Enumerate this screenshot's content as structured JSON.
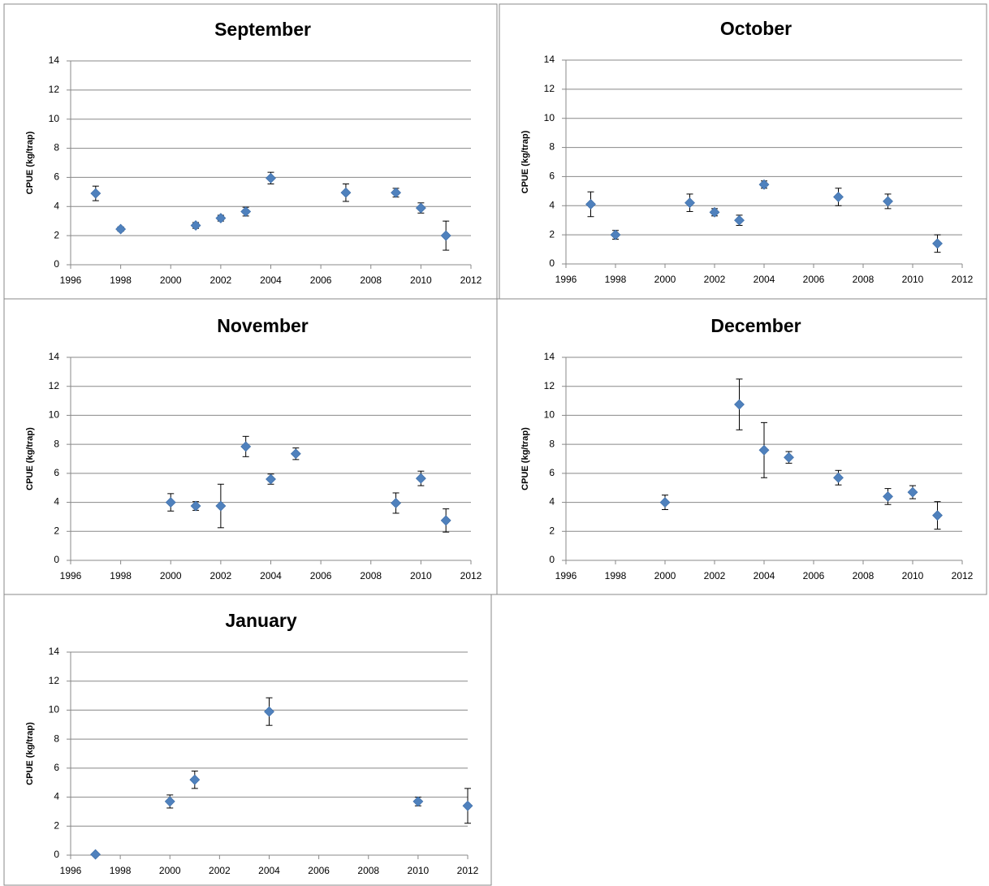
{
  "chart_data": [
    {
      "type": "scatter",
      "title": "September",
      "ylabel": "CPUE (kg/trap)",
      "color": "#4f81bd",
      "grid": true,
      "x": [
        1997,
        1998,
        2001,
        2002,
        2003,
        2004,
        2007,
        2009,
        2010,
        2011
      ],
      "values": [
        4.9,
        2.45,
        2.7,
        3.2,
        3.65,
        5.95,
        4.95,
        4.95,
        3.9,
        2.0
      ],
      "errors": [
        0.5,
        0.15,
        0.2,
        0.2,
        0.3,
        0.4,
        0.6,
        0.3,
        0.35,
        1.0
      ],
      "xlim": [
        1996,
        2012
      ],
      "xticks": [
        1996,
        1998,
        2000,
        2002,
        2004,
        2006,
        2008,
        2010,
        2012
      ],
      "ylim": [
        0,
        14
      ],
      "yticks": [
        0,
        2,
        4,
        6,
        8,
        10,
        12,
        14
      ]
    },
    {
      "type": "scatter",
      "title": "October",
      "ylabel": "CPUE (kg/trap)",
      "color": "#4f81bd",
      "grid": true,
      "x": [
        1997,
        1998,
        2001,
        2002,
        2003,
        2004,
        2007,
        2009,
        2011
      ],
      "values": [
        4.1,
        2.0,
        4.2,
        3.55,
        3.0,
        5.45,
        4.6,
        4.3,
        1.4
      ],
      "errors": [
        0.85,
        0.3,
        0.6,
        0.25,
        0.35,
        0.25,
        0.6,
        0.5,
        0.6
      ],
      "xlim": [
        1996,
        2012
      ],
      "xticks": [
        1996,
        1998,
        2000,
        2002,
        2004,
        2006,
        2008,
        2010,
        2012
      ],
      "ylim": [
        0,
        14
      ],
      "yticks": [
        0,
        2,
        4,
        6,
        8,
        10,
        12,
        14
      ]
    },
    {
      "type": "scatter",
      "title": "November",
      "ylabel": "CPUE (kg/trap)",
      "color": "#4f81bd",
      "grid": true,
      "x": [
        2000,
        2001,
        2002,
        2003,
        2004,
        2005,
        2009,
        2010,
        2011
      ],
      "values": [
        4.0,
        3.75,
        3.75,
        7.85,
        5.6,
        7.35,
        3.95,
        5.65,
        2.75
      ],
      "errors": [
        0.6,
        0.3,
        1.5,
        0.7,
        0.35,
        0.4,
        0.7,
        0.5,
        0.8
      ],
      "xlim": [
        1996,
        2012
      ],
      "xticks": [
        1996,
        1998,
        2000,
        2002,
        2004,
        2006,
        2008,
        2010,
        2012
      ],
      "ylim": [
        0,
        14
      ],
      "yticks": [
        0,
        2,
        4,
        6,
        8,
        10,
        12,
        14
      ]
    },
    {
      "type": "scatter",
      "title": "December",
      "ylabel": "CPUE (kg/trap)",
      "color": "#4f81bd",
      "grid": true,
      "x": [
        2000,
        2003,
        2004,
        2005,
        2007,
        2009,
        2010,
        2011
      ],
      "values": [
        4.0,
        10.75,
        7.6,
        7.1,
        5.7,
        4.4,
        4.7,
        3.1
      ],
      "errors": [
        0.5,
        1.75,
        1.9,
        0.4,
        0.5,
        0.55,
        0.45,
        0.95
      ],
      "xlim": [
        1996,
        2012
      ],
      "xticks": [
        1996,
        1998,
        2000,
        2002,
        2004,
        2006,
        2008,
        2010,
        2012
      ],
      "ylim": [
        0,
        14
      ],
      "yticks": [
        0,
        2,
        4,
        6,
        8,
        10,
        12,
        14
      ]
    },
    {
      "type": "scatter",
      "title": "January",
      "ylabel": "CPUE (kg/trap)",
      "color": "#4f81bd",
      "grid": true,
      "x": [
        1997,
        2000,
        2001,
        2004,
        2010,
        2012
      ],
      "values": [
        0.05,
        3.7,
        5.2,
        9.9,
        3.7,
        3.4
      ],
      "errors": [
        0,
        0.45,
        0.6,
        0.95,
        0.3,
        1.2
      ],
      "xlim": [
        1996,
        2012
      ],
      "xticks": [
        1996,
        1998,
        2000,
        2002,
        2004,
        2006,
        2008,
        2010,
        2012
      ],
      "ylim": [
        0,
        14
      ],
      "yticks": [
        0,
        2,
        4,
        6,
        8,
        10,
        12,
        14
      ]
    }
  ]
}
